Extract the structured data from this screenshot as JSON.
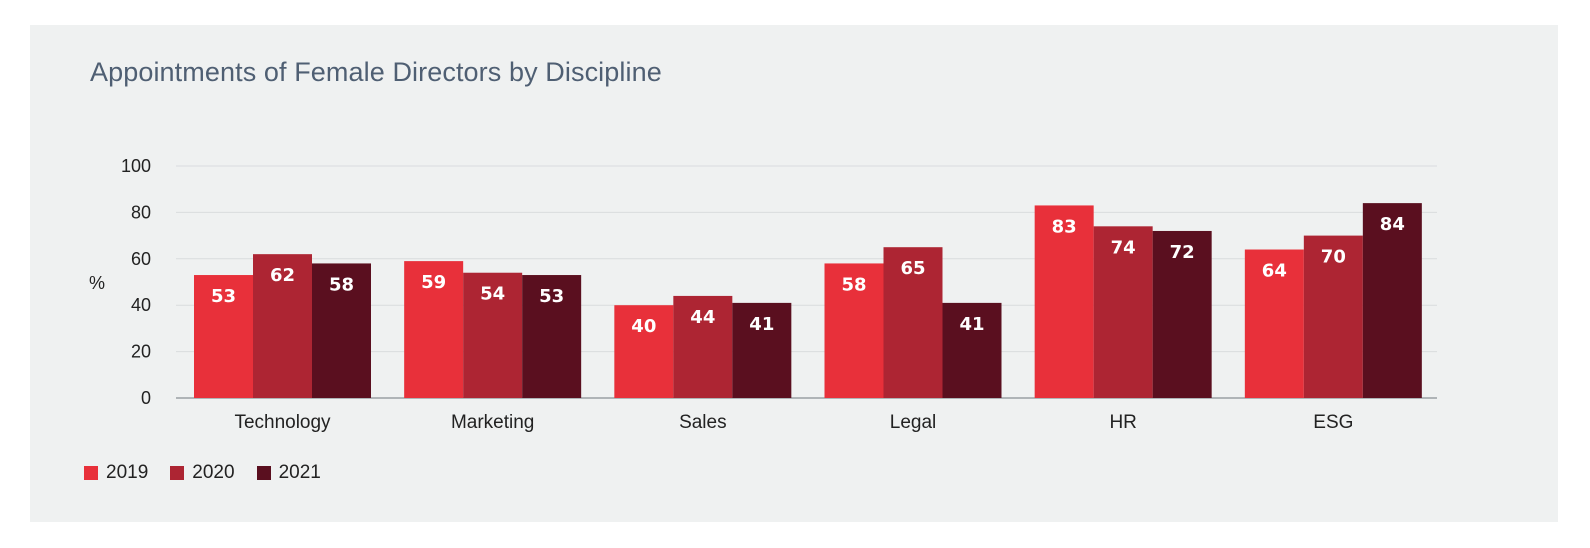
{
  "title": "Appointments of Female Directors by Discipline",
  "chart_data": {
    "type": "bar",
    "title": "Appointments of Female Directors by Discipline",
    "ylabel": "%",
    "xlabel": "",
    "ylim": [
      0,
      100
    ],
    "yticks": [
      "0",
      "20",
      "40",
      "60",
      "80",
      "100"
    ],
    "grid": true,
    "legend_position": "bottom-left",
    "categories": [
      "Technology",
      "Marketing",
      "Sales",
      "Legal",
      "HR",
      "ESG"
    ],
    "series": [
      {
        "name": "2019",
        "color": "#e8303a",
        "values": [
          53,
          59,
          40,
          58,
          83,
          64
        ]
      },
      {
        "name": "2020",
        "color": "#ad2533",
        "values": [
          62,
          54,
          44,
          65,
          74,
          70
        ]
      },
      {
        "name": "2021",
        "color": "#5a0f1f",
        "values": [
          58,
          53,
          41,
          41,
          72,
          84
        ]
      }
    ]
  }
}
